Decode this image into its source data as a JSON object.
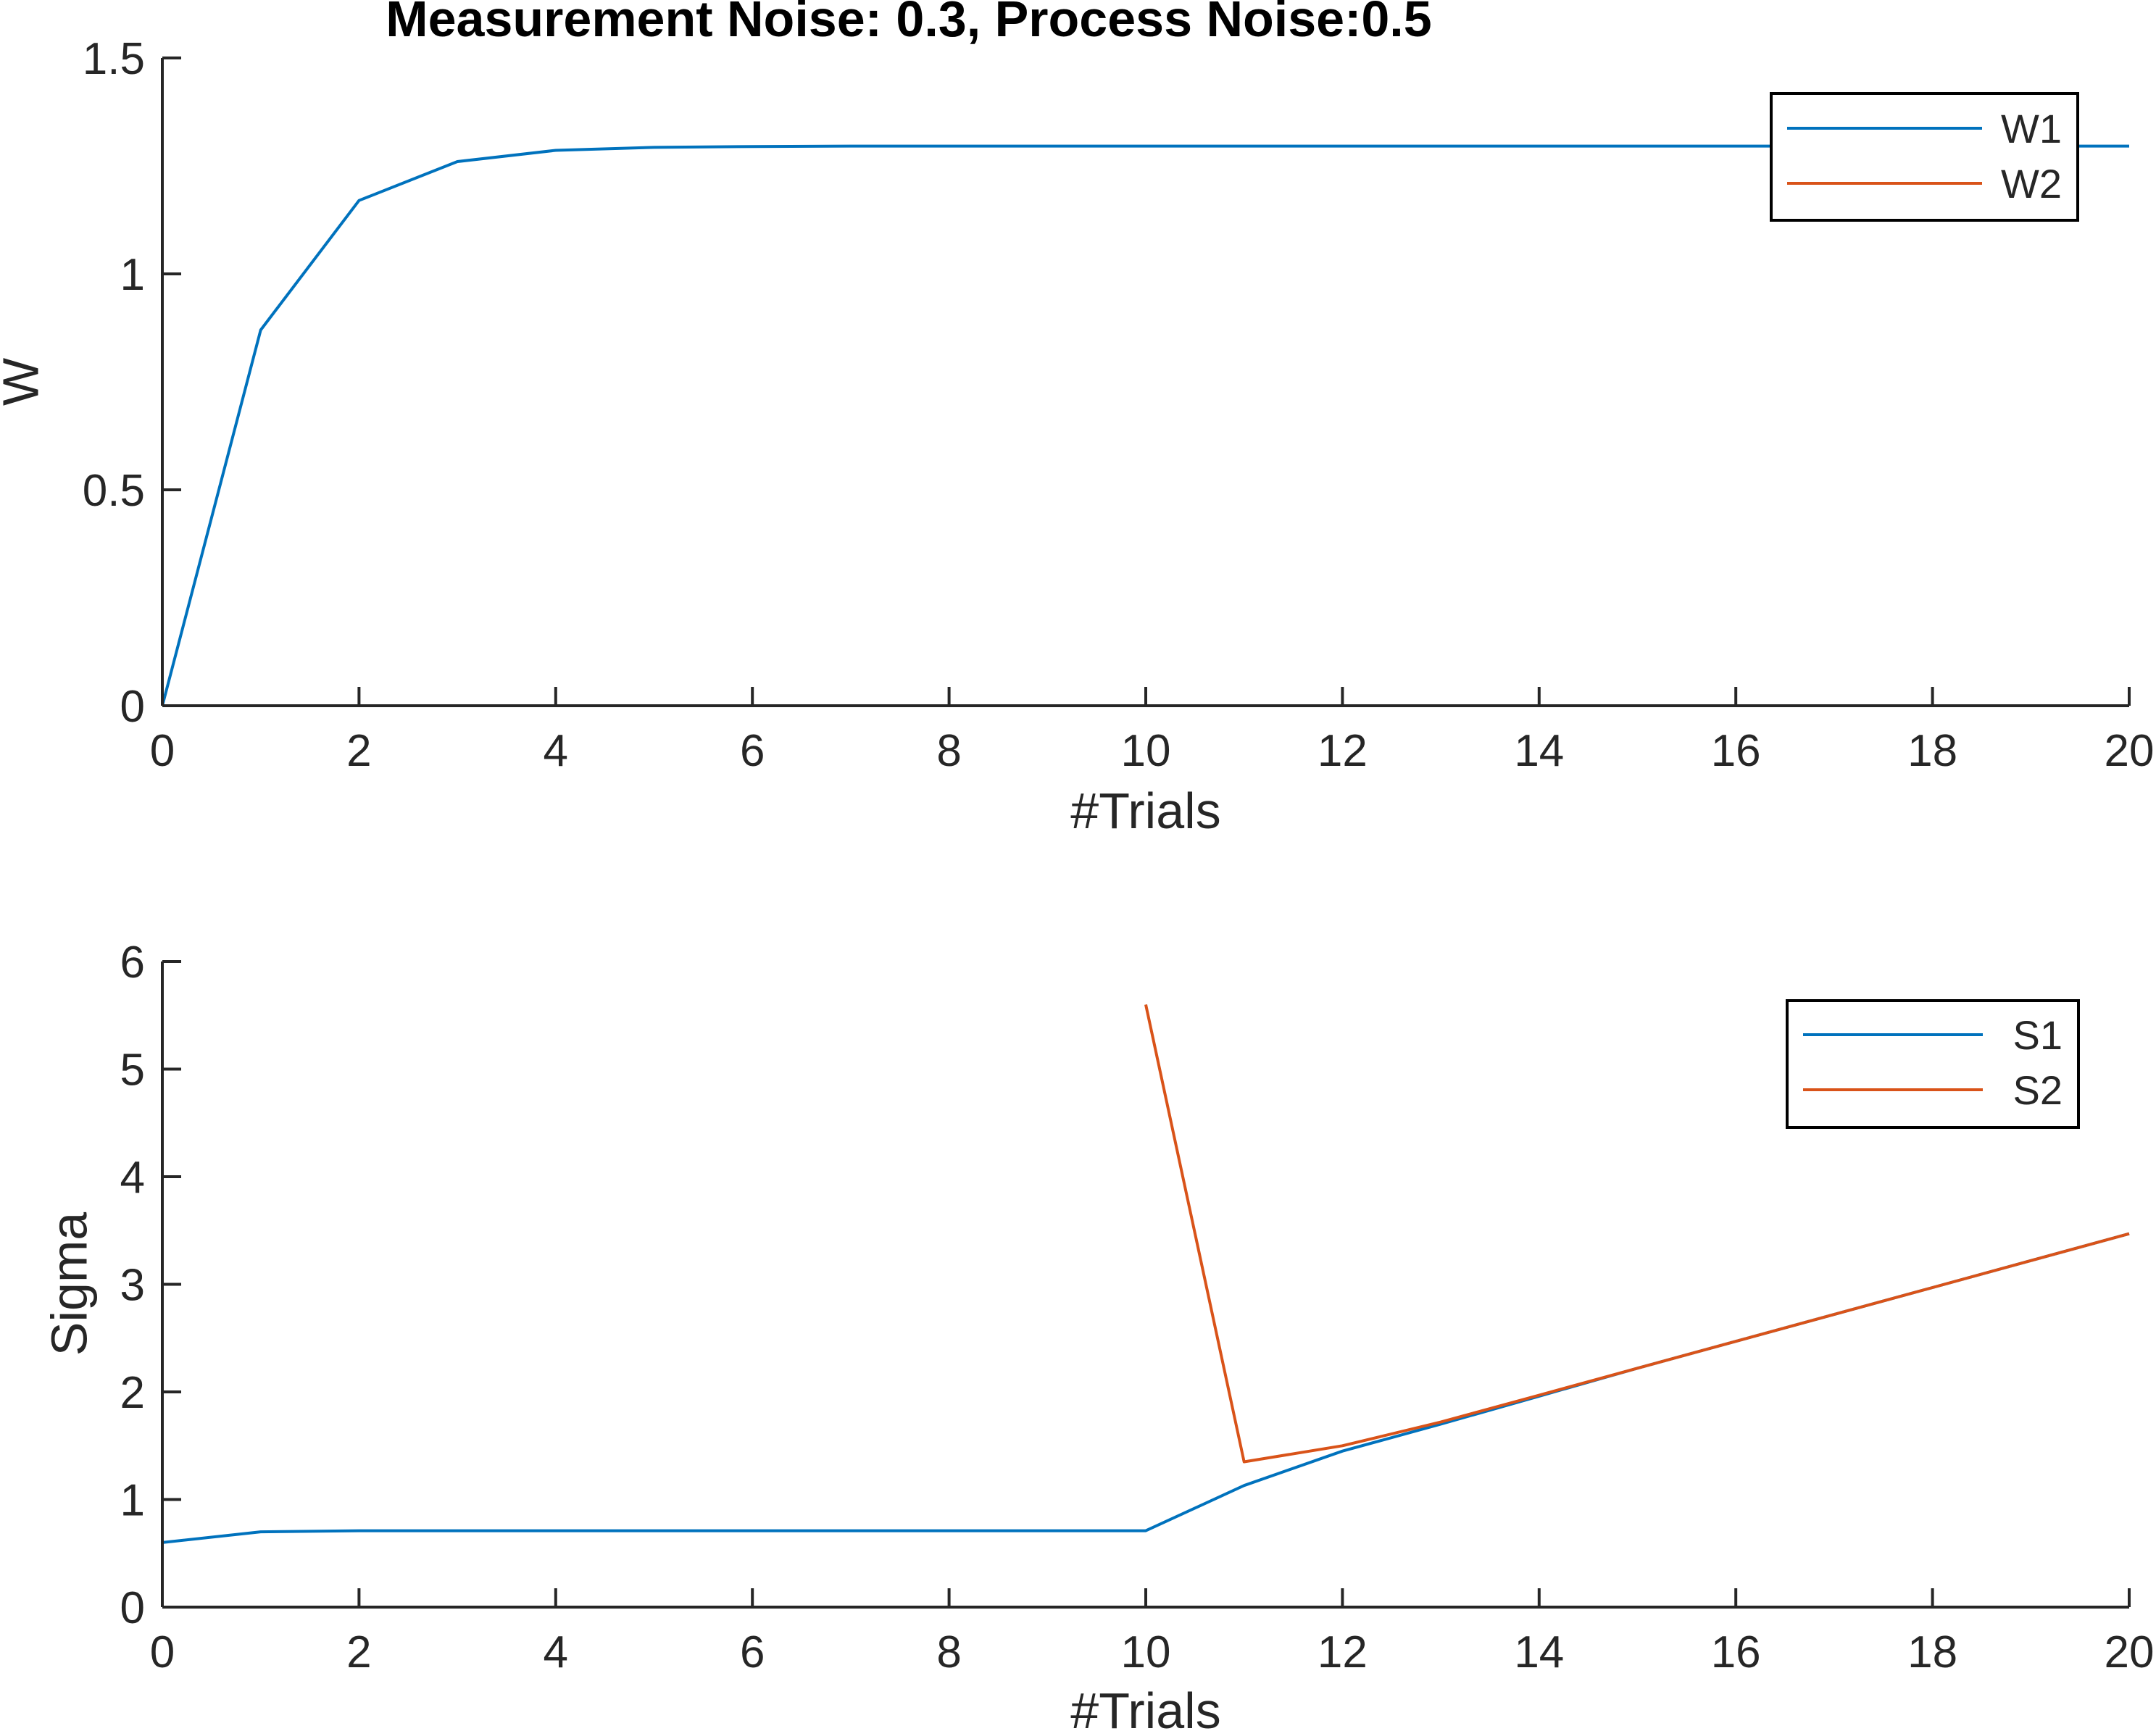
{
  "figure": {
    "title": "Measurement Noise: 0.3, Process Noise:0.5"
  },
  "chart_data": [
    {
      "type": "line",
      "title": "Measurement Noise: 0.3, Process Noise:0.5",
      "xlabel": "#Trials",
      "ylabel": "W",
      "xlim": [
        0,
        20
      ],
      "ylim": [
        0,
        1.5
      ],
      "xticks": [
        "0",
        "2",
        "4",
        "6",
        "8",
        "10",
        "12",
        "14",
        "16",
        "18",
        "20"
      ],
      "yticks": [
        "0",
        "0.5",
        "1",
        "1.5"
      ],
      "grid": false,
      "legend_position": "top-right",
      "series": [
        {
          "name": "W1",
          "color": "#0072BD",
          "x": [
            0,
            1,
            2,
            3,
            4,
            5,
            6,
            7,
            8,
            9,
            10,
            11,
            12,
            13,
            14,
            15,
            16,
            17,
            18,
            19,
            20
          ],
          "y": [
            0,
            0.87,
            1.17,
            1.26,
            1.286,
            1.293,
            1.295,
            1.296,
            1.296,
            1.296,
            1.296,
            1.296,
            1.296,
            1.296,
            1.296,
            1.296,
            1.296,
            1.296,
            1.296,
            1.296,
            1.296
          ]
        },
        {
          "name": "W2",
          "color": "#D95319",
          "x": [
            0,
            20
          ],
          "y": [
            0,
            0
          ]
        }
      ]
    },
    {
      "type": "line",
      "xlabel": "#Trials",
      "ylabel": "Sigma",
      "xlim": [
        0,
        20
      ],
      "ylim": [
        0,
        6
      ],
      "xticks": [
        "0",
        "2",
        "4",
        "6",
        "8",
        "10",
        "12",
        "14",
        "16",
        "18",
        "20"
      ],
      "yticks": [
        "0",
        "1",
        "2",
        "3",
        "4",
        "5",
        "6"
      ],
      "grid": false,
      "legend_position": "top-right",
      "series": [
        {
          "name": "S1",
          "color": "#0072BD",
          "x": [
            0,
            1,
            2,
            3,
            4,
            5,
            6,
            7,
            8,
            9,
            10,
            11,
            12,
            13,
            14,
            15,
            16,
            17,
            18,
            19,
            20
          ],
          "y": [
            0.6,
            0.7,
            0.71,
            0.71,
            0.71,
            0.71,
            0.71,
            0.71,
            0.71,
            0.71,
            0.71,
            1.13,
            1.45,
            1.7,
            1.96,
            2.22,
            2.47,
            2.72,
            2.97,
            3.22,
            3.47
          ]
        },
        {
          "name": "S2",
          "color": "#D95319",
          "x": [
            10,
            11,
            12,
            13,
            14,
            15,
            16,
            17,
            18,
            19,
            20
          ],
          "y": [
            5.6,
            1.35,
            1.5,
            1.72,
            1.97,
            2.22,
            2.47,
            2.72,
            2.97,
            3.22,
            3.47
          ]
        }
      ]
    }
  ]
}
